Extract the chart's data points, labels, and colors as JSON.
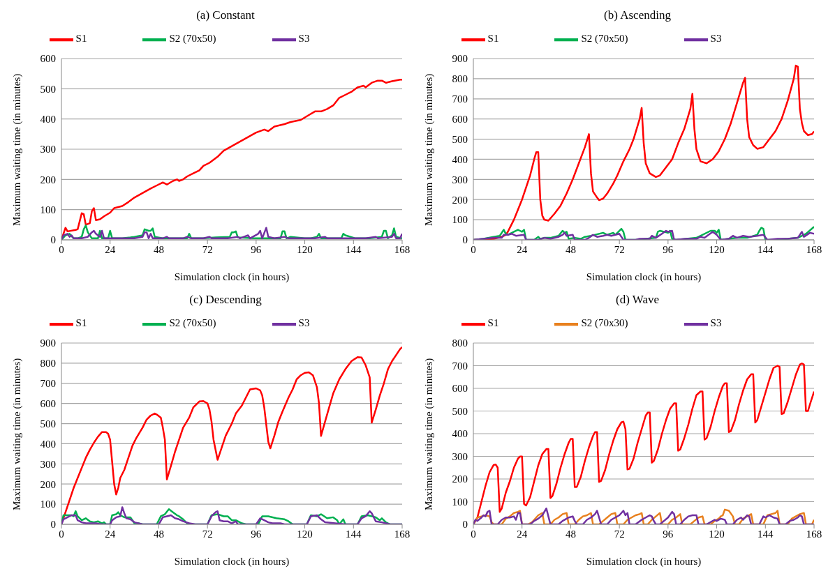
{
  "chart_data": [
    {
      "type": "line",
      "title": "(a) Constant",
      "xlabel": "Simulation clock (in hours)",
      "ylabel": "Maximum waiting time (in minutes)",
      "xlim": [
        0,
        168
      ],
      "xticks": [
        0,
        24,
        48,
        72,
        96,
        120,
        144,
        168
      ],
      "ylim": [
        0,
        600
      ],
      "yticks": [
        0,
        100,
        200,
        300,
        400,
        500,
        600
      ],
      "grid": "y",
      "legend": "top",
      "marker": "none",
      "line_style": "solid",
      "series": [
        {
          "name": "S1",
          "color": "#ff0000",
          "x": [
            0,
            2,
            3,
            7,
            8,
            10,
            11,
            12,
            14,
            15,
            16,
            17,
            19,
            21,
            24,
            26,
            30,
            33,
            36,
            40,
            44,
            47,
            50,
            52,
            55,
            57,
            58,
            60,
            62,
            65,
            68,
            70,
            73,
            77,
            80,
            84,
            88,
            92,
            96,
            100,
            102,
            105,
            110,
            113,
            118,
            122,
            125,
            128,
            131,
            134,
            137,
            140,
            143,
            146,
            149,
            150,
            153,
            156,
            158,
            160,
            163,
            167,
            168
          ],
          "values": [
            0,
            40,
            28,
            33,
            35,
            88,
            85,
            50,
            55,
            95,
            105,
            65,
            68,
            78,
            90,
            105,
            112,
            125,
            140,
            155,
            170,
            180,
            190,
            183,
            195,
            200,
            195,
            200,
            210,
            220,
            230,
            245,
            255,
            275,
            295,
            310,
            325,
            340,
            355,
            365,
            360,
            375,
            383,
            390,
            397,
            413,
            425,
            425,
            433,
            445,
            470,
            480,
            490,
            505,
            510,
            505,
            520,
            527,
            527,
            520,
            525,
            530,
            530
          ]
        },
        {
          "name": "S2 (70x50)",
          "color": "#00b050",
          "x": [
            0,
            2,
            4,
            6,
            8,
            10,
            11,
            12,
            13,
            15,
            18,
            19,
            20,
            23,
            24,
            25,
            30,
            34,
            36,
            40,
            41,
            43,
            44,
            45,
            46,
            50,
            54,
            56,
            62,
            63,
            64,
            70,
            76,
            83,
            84,
            85,
            86,
            87,
            95,
            100,
            108,
            109,
            110,
            111,
            113,
            120,
            123,
            126,
            127,
            128,
            138,
            139,
            140,
            145,
            152,
            158,
            159,
            160,
            161,
            163,
            164,
            165,
            168
          ],
          "values": [
            0,
            15,
            20,
            5,
            5,
            10,
            35,
            48,
            25,
            5,
            5,
            30,
            5,
            5,
            30,
            5,
            5,
            8,
            10,
            15,
            35,
            30,
            30,
            38,
            10,
            5,
            5,
            5,
            5,
            20,
            5,
            5,
            8,
            10,
            25,
            25,
            28,
            8,
            5,
            5,
            5,
            28,
            28,
            5,
            10,
            5,
            5,
            10,
            20,
            5,
            5,
            20,
            15,
            5,
            5,
            10,
            30,
            30,
            5,
            15,
            38,
            10,
            5
          ]
        },
        {
          "name": "S3",
          "color": "#7030a0",
          "x": [
            0,
            1,
            3,
            4,
            5,
            6,
            10,
            13,
            15,
            16,
            17,
            19,
            20,
            21,
            24,
            30,
            36,
            40,
            41,
            42,
            43,
            44,
            45,
            50,
            52,
            53,
            60,
            62,
            64,
            70,
            73,
            74,
            82,
            87,
            88,
            92,
            93,
            97,
            98,
            99,
            101,
            102,
            105,
            110,
            112,
            120,
            125,
            130,
            131,
            140,
            150,
            155,
            156,
            163,
            164,
            165,
            167,
            168
          ],
          "values": [
            0,
            15,
            20,
            10,
            15,
            5,
            5,
            10,
            25,
            30,
            20,
            10,
            30,
            5,
            5,
            5,
            5,
            10,
            25,
            25,
            5,
            20,
            5,
            5,
            10,
            5,
            5,
            10,
            5,
            5,
            10,
            5,
            5,
            10,
            5,
            15,
            5,
            20,
            30,
            5,
            40,
            10,
            5,
            10,
            5,
            5,
            5,
            10,
            5,
            5,
            5,
            10,
            5,
            10,
            20,
            5,
            5,
            20
          ]
        }
      ]
    },
    {
      "type": "line",
      "title": "(b) Ascending",
      "xlabel": "Simulation clock (in hours)",
      "ylabel": "Maximum waiting time (in minutes)",
      "xlim": [
        0,
        168
      ],
      "xticks": [
        0,
        24,
        48,
        72,
        96,
        120,
        144,
        168
      ],
      "ylim": [
        0,
        900
      ],
      "yticks": [
        0,
        100,
        200,
        300,
        400,
        500,
        600,
        700,
        800,
        900
      ],
      "grid": "y",
      "legend": "top",
      "marker": "none",
      "line_style": "solid",
      "series": [
        {
          "name": "S1",
          "color": "#ff0000",
          "x": [
            0,
            10,
            14,
            16,
            17,
            18,
            20,
            22,
            24,
            26,
            28,
            30,
            31,
            32,
            33,
            34,
            35,
            37,
            40,
            43,
            46,
            49,
            52,
            55,
            57,
            58,
            59,
            61,
            62,
            64,
            66,
            69,
            71,
            74,
            77,
            79,
            82,
            83,
            84,
            85,
            87,
            90,
            92,
            95,
            98,
            101,
            104,
            107,
            108,
            109,
            110,
            112,
            115,
            118,
            121,
            124,
            127,
            130,
            133,
            134,
            135,
            136,
            138,
            140,
            143,
            146,
            149,
            152,
            155,
            158,
            159,
            160,
            161,
            162,
            163,
            165,
            167,
            168
          ],
          "values": [
            0,
            5,
            15,
            25,
            40,
            60,
            100,
            150,
            200,
            260,
            320,
            400,
            435,
            435,
            200,
            120,
            100,
            95,
            130,
            170,
            230,
            300,
            380,
            460,
            525,
            330,
            240,
            210,
            197,
            205,
            230,
            280,
            320,
            390,
            450,
            500,
            600,
            655,
            480,
            380,
            330,
            312,
            320,
            360,
            400,
            480,
            550,
            650,
            725,
            550,
            450,
            390,
            380,
            400,
            440,
            500,
            580,
            680,
            780,
            805,
            600,
            510,
            470,
            452,
            460,
            500,
            540,
            600,
            690,
            800,
            865,
            860,
            650,
            580,
            540,
            520,
            525,
            538
          ]
        },
        {
          "name": "S2 (70x50)",
          "color": "#00b050",
          "x": [
            0,
            5,
            10,
            13,
            14,
            15,
            16,
            17,
            20,
            22,
            23,
            24,
            25,
            26,
            30,
            32,
            33,
            35,
            38,
            42,
            44,
            45,
            46,
            47,
            50,
            53,
            55,
            58,
            64,
            66,
            69,
            70,
            73,
            74,
            75,
            80,
            85,
            90,
            91,
            92,
            96,
            97,
            98,
            100,
            105,
            110,
            117,
            119,
            120,
            121,
            122,
            126,
            130,
            135,
            140,
            141,
            142,
            143,
            144,
            148,
            155,
            160,
            164,
            168
          ],
          "values": [
            0,
            5,
            15,
            20,
            35,
            50,
            30,
            25,
            40,
            50,
            45,
            40,
            50,
            0,
            0,
            15,
            5,
            10,
            10,
            20,
            45,
            35,
            40,
            5,
            10,
            5,
            15,
            20,
            35,
            25,
            35,
            25,
            55,
            40,
            0,
            0,
            5,
            10,
            40,
            45,
            35,
            45,
            5,
            0,
            5,
            10,
            45,
            45,
            35,
            50,
            0,
            5,
            10,
            10,
            25,
            45,
            60,
            55,
            0,
            0,
            5,
            10,
            30,
            65
          ]
        },
        {
          "name": "S3",
          "color": "#7030a0",
          "x": [
            0,
            5,
            10,
            14,
            15,
            17,
            19,
            21,
            25,
            26,
            32,
            35,
            38,
            42,
            44,
            45,
            46,
            49,
            50,
            55,
            57,
            59,
            61,
            64,
            66,
            68,
            72,
            74,
            80,
            82,
            87,
            88,
            90,
            93,
            95,
            96,
            98,
            99,
            105,
            110,
            112,
            114,
            116,
            118,
            120,
            122,
            126,
            128,
            130,
            133,
            136,
            140,
            143,
            145,
            150,
            155,
            160,
            162,
            163,
            166,
            168
          ],
          "values": [
            0,
            5,
            10,
            10,
            25,
            25,
            30,
            20,
            25,
            0,
            0,
            10,
            5,
            15,
            25,
            35,
            20,
            25,
            0,
            0,
            10,
            25,
            15,
            20,
            25,
            20,
            30,
            0,
            0,
            5,
            5,
            20,
            10,
            30,
            45,
            40,
            45,
            0,
            5,
            5,
            15,
            10,
            25,
            40,
            25,
            0,
            5,
            20,
            10,
            20,
            15,
            20,
            25,
            0,
            5,
            5,
            10,
            40,
            15,
            35,
            30
          ]
        }
      ]
    },
    {
      "type": "line",
      "title": "(c) Descending",
      "xlabel": "Simulation clock (in hours)",
      "ylabel": "Maximum waiting time (in minutes)",
      "xlim": [
        0,
        168
      ],
      "xticks": [
        0,
        24,
        48,
        72,
        96,
        120,
        144,
        168
      ],
      "ylim": [
        0,
        900
      ],
      "yticks": [
        0,
        100,
        200,
        300,
        400,
        500,
        600,
        700,
        800,
        900
      ],
      "grid": "y",
      "legend": "top",
      "marker": "none",
      "line_style": "solid",
      "series": [
        {
          "name": "S1",
          "color": "#ff0000",
          "x": [
            0,
            2,
            4,
            6,
            8,
            10,
            12,
            14,
            16,
            18,
            20,
            22,
            23,
            24,
            25,
            26,
            27,
            28,
            29,
            31,
            33,
            35,
            37,
            40,
            42,
            44,
            46,
            47,
            49,
            50,
            51,
            52,
            54,
            56,
            58,
            60,
            63,
            65,
            68,
            70,
            72,
            73,
            74,
            75,
            77,
            79,
            81,
            84,
            86,
            89,
            91,
            93,
            96,
            98,
            99,
            100,
            102,
            103,
            105,
            107,
            109,
            112,
            114,
            116,
            118,
            120,
            122,
            124,
            126,
            127,
            128,
            130,
            132,
            134,
            137,
            140,
            143,
            146,
            148,
            150,
            152,
            153,
            155,
            157,
            159,
            161,
            163,
            165,
            167,
            168
          ],
          "values": [
            0,
            60,
            120,
            180,
            230,
            280,
            330,
            370,
            405,
            435,
            458,
            458,
            450,
            420,
            310,
            200,
            148,
            180,
            230,
            270,
            330,
            390,
            430,
            480,
            520,
            540,
            550,
            545,
            530,
            480,
            420,
            223,
            290,
            360,
            420,
            480,
            530,
            580,
            610,
            612,
            600,
            570,
            510,
            420,
            320,
            380,
            440,
            500,
            550,
            590,
            630,
            670,
            675,
            665,
            640,
            580,
            410,
            377,
            440,
            510,
            560,
            630,
            670,
            720,
            740,
            752,
            755,
            740,
            680,
            600,
            439,
            510,
            580,
            650,
            720,
            770,
            810,
            830,
            828,
            790,
            730,
            505,
            570,
            640,
            700,
            770,
            810,
            840,
            870,
            880
          ]
        },
        {
          "name": "S2 (70x50)",
          "color": "#00b050",
          "x": [
            0,
            1,
            5,
            6,
            7,
            8,
            10,
            12,
            14,
            16,
            18,
            20,
            21,
            22,
            24,
            25,
            27,
            28,
            29,
            31,
            34,
            35,
            36,
            38,
            40,
            47,
            49,
            51,
            53,
            55,
            57,
            58,
            60,
            62,
            65,
            72,
            74,
            77,
            80,
            82,
            84,
            86,
            89,
            91,
            97,
            99,
            102,
            106,
            110,
            112,
            114,
            121,
            123,
            126,
            128,
            131,
            134,
            136,
            137,
            139,
            140,
            146,
            148,
            151,
            155,
            157,
            158,
            160,
            162,
            168
          ],
          "values": [
            0,
            45,
            45,
            40,
            65,
            40,
            20,
            30,
            15,
            10,
            15,
            5,
            10,
            0,
            0,
            45,
            50,
            60,
            45,
            35,
            35,
            20,
            5,
            5,
            0,
            0,
            40,
            50,
            75,
            60,
            45,
            40,
            25,
            5,
            0,
            0,
            45,
            50,
            40,
            40,
            20,
            20,
            5,
            0,
            0,
            40,
            40,
            30,
            25,
            15,
            0,
            0,
            45,
            40,
            50,
            30,
            35,
            20,
            0,
            25,
            0,
            0,
            40,
            45,
            35,
            20,
            30,
            10,
            0,
            0
          ]
        },
        {
          "name": "S3",
          "color": "#7030a0",
          "x": [
            0,
            1,
            3,
            5,
            7,
            8,
            10,
            12,
            14,
            17,
            20,
            24,
            25,
            27,
            29,
            30,
            31,
            32,
            34,
            36,
            40,
            48,
            50,
            52,
            54,
            56,
            58,
            60,
            63,
            66,
            72,
            74,
            76,
            77,
            78,
            80,
            82,
            84,
            86,
            87,
            96,
            98,
            100,
            102,
            104,
            108,
            110,
            121,
            123,
            126,
            128,
            130,
            135,
            140,
            146,
            148,
            150,
            152,
            153,
            155,
            158,
            160,
            162,
            168
          ],
          "values": [
            0,
            25,
            35,
            45,
            45,
            20,
            10,
            5,
            5,
            5,
            0,
            0,
            20,
            35,
            40,
            85,
            55,
            30,
            25,
            10,
            0,
            0,
            35,
            40,
            45,
            30,
            25,
            15,
            5,
            0,
            0,
            40,
            60,
            65,
            20,
            15,
            15,
            5,
            15,
            0,
            0,
            30,
            20,
            10,
            5,
            5,
            0,
            0,
            40,
            45,
            25,
            10,
            5,
            0,
            0,
            30,
            40,
            65,
            55,
            15,
            10,
            5,
            0,
            0
          ]
        }
      ]
    },
    {
      "type": "line",
      "title": "(d) Wave",
      "xlabel": "Simulation clock (in hours)",
      "ylabel": "Maximum waiting time (in minutes)",
      "xlim": [
        0,
        168
      ],
      "xticks": [
        0,
        24,
        48,
        72,
        96,
        120,
        144,
        168
      ],
      "ylim": [
        0,
        800
      ],
      "yticks": [
        0,
        100,
        200,
        300,
        400,
        500,
        600,
        700,
        800
      ],
      "grid": "y",
      "legend": "top",
      "marker": "none",
      "line_style": "solid",
      "series": [
        {
          "name": "S1",
          "color": "#ff0000",
          "x": [
            0,
            2,
            4,
            6,
            8,
            10,
            11,
            12,
            13,
            14,
            16,
            18,
            20,
            22,
            23,
            24,
            25,
            26,
            28,
            30,
            32,
            34,
            36,
            37,
            38,
            39,
            41,
            43,
            45,
            47,
            48,
            49,
            50,
            51,
            53,
            55,
            57,
            59,
            60,
            61,
            62,
            63,
            65,
            67,
            69,
            71,
            73,
            74,
            75,
            76,
            77,
            79,
            81,
            83,
            85,
            86,
            87,
            88,
            89,
            91,
            93,
            95,
            97,
            99,
            100,
            101,
            102,
            104,
            106,
            108,
            110,
            112,
            113,
            114,
            115,
            117,
            119,
            121,
            123,
            124,
            125,
            126,
            127,
            129,
            131,
            133,
            135,
            137,
            138,
            139,
            140,
            142,
            144,
            146,
            148,
            150,
            151,
            152,
            153,
            155,
            157,
            159,
            161,
            162,
            163,
            164,
            165,
            166,
            168
          ],
          "values": [
            0,
            30,
            100,
            170,
            230,
            262,
            264,
            250,
            55,
            70,
            140,
            190,
            250,
            290,
            299,
            299,
            90,
            83,
            120,
            190,
            260,
            310,
            332,
            332,
            116,
            125,
            180,
            250,
            310,
            360,
            377,
            377,
            165,
            165,
            210,
            280,
            340,
            390,
            407,
            407,
            187,
            192,
            240,
            310,
            370,
            420,
            450,
            453,
            420,
            242,
            245,
            290,
            360,
            420,
            480,
            493,
            493,
            272,
            280,
            330,
            400,
            460,
            510,
            534,
            534,
            325,
            330,
            380,
            440,
            510,
            570,
            586,
            586,
            374,
            380,
            430,
            500,
            560,
            610,
            622,
            622,
            407,
            412,
            460,
            530,
            590,
            640,
            662,
            662,
            449,
            460,
            520,
            580,
            640,
            690,
            700,
            695,
            487,
            490,
            540,
            600,
            660,
            705,
            710,
            705,
            500,
            500,
            530,
            586
          ]
        },
        {
          "name": "S2 (70x30)",
          "color": "#e8801e",
          "x": [
            0,
            2,
            4,
            6,
            8,
            9,
            10,
            14,
            16,
            18,
            20,
            22,
            23,
            24,
            27,
            29,
            30,
            32,
            34,
            35,
            38,
            40,
            42,
            44,
            46,
            47,
            50,
            52,
            54,
            56,
            58,
            59,
            62,
            64,
            66,
            68,
            70,
            71,
            74,
            76,
            78,
            80,
            82,
            83,
            84,
            86,
            88,
            90,
            92,
            93,
            96,
            98,
            100,
            102,
            103,
            107,
            109,
            111,
            113,
            114,
            117,
            119,
            121,
            122,
            123,
            124,
            126,
            128,
            129,
            131,
            133,
            135,
            137,
            138,
            143,
            145,
            147,
            149,
            150,
            151,
            155,
            157,
            159,
            161,
            163,
            164,
            167,
            168
          ],
          "values": [
            0,
            30,
            35,
            40,
            35,
            10,
            0,
            0,
            25,
            35,
            50,
            55,
            60,
            0,
            0,
            10,
            20,
            40,
            50,
            0,
            0,
            20,
            30,
            45,
            50,
            0,
            0,
            20,
            35,
            40,
            50,
            0,
            0,
            15,
            30,
            45,
            50,
            0,
            0,
            20,
            30,
            40,
            45,
            50,
            0,
            0,
            20,
            35,
            50,
            0,
            0,
            20,
            30,
            45,
            0,
            0,
            15,
            30,
            35,
            0,
            0,
            15,
            25,
            35,
            40,
            65,
            60,
            35,
            0,
            0,
            25,
            35,
            45,
            0,
            0,
            40,
            45,
            50,
            60,
            0,
            0,
            25,
            35,
            45,
            50,
            0,
            0,
            20
          ]
        },
        {
          "name": "S3",
          "color": "#7030a0",
          "x": [
            0,
            1,
            2,
            4,
            5,
            6,
            7,
            8,
            9,
            12,
            14,
            16,
            18,
            20,
            21,
            22,
            23,
            24,
            28,
            30,
            32,
            34,
            36,
            37,
            38,
            42,
            44,
            46,
            47,
            49,
            50,
            51,
            54,
            56,
            58,
            60,
            61,
            62,
            63,
            66,
            68,
            70,
            72,
            74,
            75,
            76,
            77,
            80,
            83,
            85,
            87,
            88,
            89,
            90,
            92,
            94,
            96,
            98,
            99,
            100,
            102,
            104,
            106,
            108,
            110,
            111,
            115,
            117,
            119,
            120,
            122,
            124,
            125,
            128,
            130,
            132,
            133,
            135,
            136,
            137,
            141,
            143,
            144,
            146,
            148,
            150,
            151,
            154,
            156,
            158,
            160,
            161,
            162,
            163,
            168
          ],
          "values": [
            0,
            20,
            15,
            30,
            40,
            35,
            55,
            60,
            0,
            0,
            20,
            30,
            30,
            35,
            20,
            50,
            50,
            0,
            0,
            15,
            25,
            40,
            70,
            35,
            0,
            0,
            15,
            25,
            30,
            35,
            15,
            0,
            0,
            20,
            30,
            45,
            60,
            30,
            0,
            0,
            20,
            30,
            40,
            60,
            40,
            50,
            0,
            0,
            20,
            30,
            40,
            35,
            15,
            0,
            0,
            15,
            30,
            55,
            45,
            0,
            0,
            20,
            35,
            40,
            40,
            0,
            0,
            10,
            20,
            15,
            25,
            20,
            0,
            0,
            20,
            30,
            20,
            40,
            35,
            0,
            0,
            35,
            30,
            40,
            30,
            25,
            0,
            0,
            15,
            20,
            30,
            40,
            35,
            0,
            0
          ]
        }
      ]
    }
  ]
}
